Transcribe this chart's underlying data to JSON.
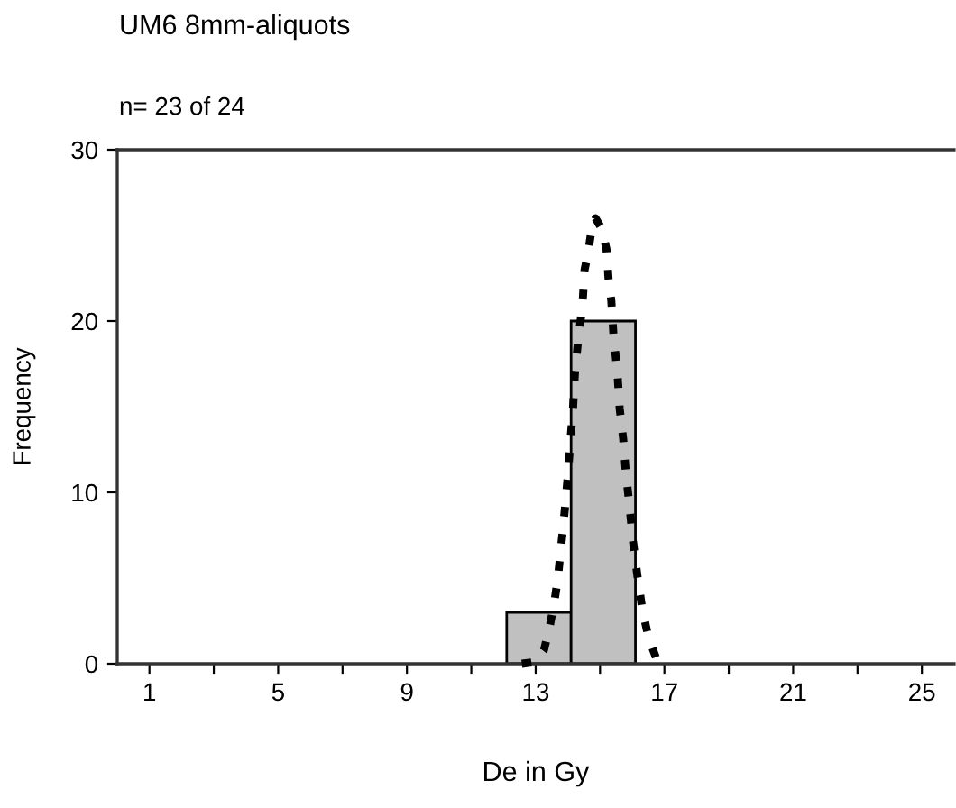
{
  "chart_data": {
    "type": "histogram",
    "title": "UM6 8mm-aliquots",
    "subtitle": "n= 23 of 24",
    "xlabel": "De in Gy",
    "ylabel": "Frequency",
    "xlim": [
      0,
      26
    ],
    "ylim": [
      0,
      30
    ],
    "xticks": [
      1,
      {
        "value": 3,
        "label": null
      },
      5,
      {
        "value": 7,
        "label": null
      },
      9,
      {
        "value": 11,
        "label": null
      },
      13,
      {
        "value": 15,
        "label": null
      },
      17,
      {
        "value": 19,
        "label": null
      },
      21,
      {
        "value": 23,
        "label": null
      },
      25
    ],
    "yticks": [
      0,
      10,
      20,
      30
    ],
    "grid": false,
    "legend": false,
    "series": [
      {
        "color": "#c0c0c0",
        "bins": [
          12.1,
          14.1,
          16.1
        ],
        "values": [
          3,
          20
        ]
      },
      {
        "type": "line",
        "color": "#000000",
        "line_style": "dotted",
        "marker": "none",
        "x": [
          12.57,
          12.98,
          13.26,
          13.45,
          13.58,
          13.69,
          13.77,
          13.85,
          13.92,
          14.0,
          14.07,
          14.16,
          14.22,
          14.33,
          14.45,
          14.52,
          14.63,
          14.71,
          14.86,
          15.05,
          15.2,
          15.27,
          15.35,
          15.42,
          15.54,
          15.61,
          15.72,
          15.8,
          15.91,
          16.02,
          16.17,
          16.32,
          16.51,
          16.77,
          17.1
        ],
        "values": [
          0,
          0.1,
          0.8,
          2.3,
          3.6,
          5.0,
          6.5,
          7.9,
          9.3,
          11.0,
          12.8,
          14.9,
          17.0,
          19.1,
          20.8,
          23.0,
          24.0,
          25.0,
          26.0,
          25.4,
          24.2,
          22.3,
          21.2,
          19.1,
          17.0,
          14.9,
          13.1,
          11.2,
          9.3,
          7.2,
          5.0,
          3.1,
          1.5,
          0.2,
          0
        ]
      }
    ]
  }
}
